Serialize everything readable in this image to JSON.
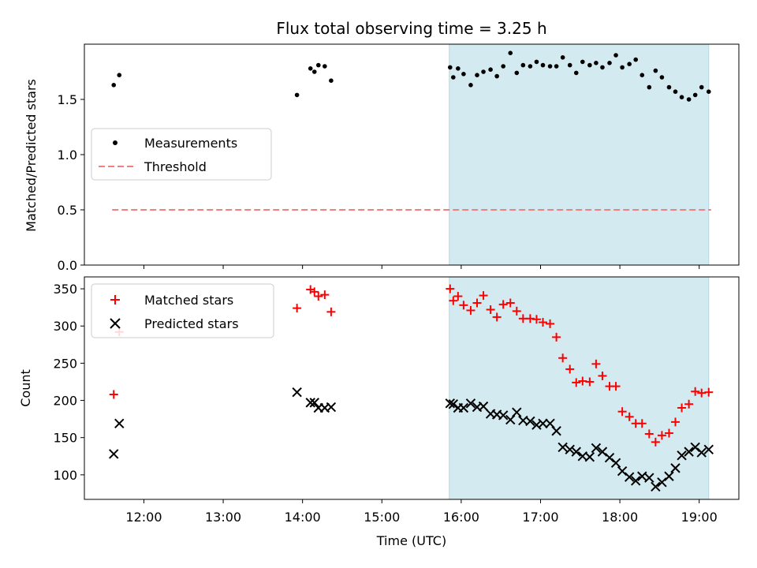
{
  "chart_data": [
    {
      "type": "scatter",
      "title": "Flux total observing time = 3.25 h",
      "xlabel": "",
      "ylabel": "Matched/Predicted stars",
      "ylim": [
        0,
        2.0
      ],
      "yticks": [
        0.0,
        0.5,
        1.0,
        1.5
      ],
      "ytick_labels": [
        "0.0",
        "0.5",
        "1.0",
        "1.5"
      ],
      "xlim_hours": [
        11.25,
        19.5
      ],
      "shaded_region_hours": [
        15.85,
        19.12
      ],
      "shade_color": "#d3eaf0",
      "grid": false,
      "legend_position": "center-left",
      "legend": [
        {
          "label": "Measurements",
          "marker": "dot",
          "color": "#000000"
        },
        {
          "label": "Threshold",
          "marker": "dashed-line",
          "color": "#f08080"
        }
      ],
      "threshold": {
        "y": 0.5,
        "x_range_hours": [
          11.6,
          19.15
        ],
        "color": "#f08080"
      },
      "series": [
        {
          "name": "Measurements",
          "color": "#000000",
          "points": [
            [
              11.62,
              1.63
            ],
            [
              11.69,
              1.72
            ],
            [
              13.93,
              1.54
            ],
            [
              14.1,
              1.78
            ],
            [
              14.15,
              1.75
            ],
            [
              14.2,
              1.81
            ],
            [
              14.28,
              1.8
            ],
            [
              14.36,
              1.67
            ],
            [
              15.86,
              1.79
            ],
            [
              15.9,
              1.7
            ],
            [
              15.96,
              1.78
            ],
            [
              16.03,
              1.73
            ],
            [
              16.12,
              1.63
            ],
            [
              16.2,
              1.72
            ],
            [
              16.28,
              1.75
            ],
            [
              16.37,
              1.77
            ],
            [
              16.45,
              1.71
            ],
            [
              16.53,
              1.8
            ],
            [
              16.62,
              1.92
            ],
            [
              16.7,
              1.74
            ],
            [
              16.78,
              1.81
            ],
            [
              16.87,
              1.8
            ],
            [
              16.95,
              1.84
            ],
            [
              17.03,
              1.81
            ],
            [
              17.12,
              1.8
            ],
            [
              17.2,
              1.8
            ],
            [
              17.28,
              1.88
            ],
            [
              17.37,
              1.81
            ],
            [
              17.45,
              1.74
            ],
            [
              17.53,
              1.84
            ],
            [
              17.62,
              1.81
            ],
            [
              17.7,
              1.83
            ],
            [
              17.78,
              1.79
            ],
            [
              17.87,
              1.83
            ],
            [
              17.95,
              1.9
            ],
            [
              18.03,
              1.79
            ],
            [
              18.12,
              1.82
            ],
            [
              18.2,
              1.86
            ],
            [
              18.28,
              1.72
            ],
            [
              18.37,
              1.61
            ],
            [
              18.45,
              1.76
            ],
            [
              18.53,
              1.7
            ],
            [
              18.62,
              1.61
            ],
            [
              18.7,
              1.57
            ],
            [
              18.78,
              1.52
            ],
            [
              18.87,
              1.5
            ],
            [
              18.95,
              1.54
            ],
            [
              19.03,
              1.61
            ],
            [
              19.12,
              1.57
            ]
          ]
        }
      ]
    },
    {
      "type": "scatter",
      "title": "",
      "xlabel": "Time (UTC)",
      "ylabel": "Count",
      "ylim": [
        67,
        366
      ],
      "yticks": [
        100,
        150,
        200,
        250,
        300,
        350
      ],
      "ytick_labels": [
        "100",
        "150",
        "200",
        "250",
        "300",
        "350"
      ],
      "xticks_hours": [
        12,
        13,
        14,
        15,
        16,
        17,
        18,
        19
      ],
      "xtick_labels": [
        "12:00",
        "13:00",
        "14:00",
        "15:00",
        "16:00",
        "17:00",
        "18:00",
        "19:00"
      ],
      "xlim_hours": [
        11.25,
        19.5
      ],
      "shaded_region_hours": [
        15.85,
        19.12
      ],
      "shade_color": "#d3eaf0",
      "grid": false,
      "legend_position": "top-left",
      "legend": [
        {
          "label": "Matched stars",
          "marker": "plus",
          "color": "#ff0000"
        },
        {
          "label": "Predicted stars",
          "marker": "x",
          "color": "#000000"
        }
      ],
      "series": [
        {
          "name": "Matched stars",
          "marker": "plus",
          "color": "#ff0000",
          "points": [
            [
              11.62,
              208
            ],
            [
              11.69,
              292
            ],
            [
              13.93,
              324
            ],
            [
              14.1,
              349
            ],
            [
              14.15,
              346
            ],
            [
              14.2,
              340
            ],
            [
              14.28,
              342
            ],
            [
              14.36,
              319
            ],
            [
              15.86,
              350
            ],
            [
              15.9,
              334
            ],
            [
              15.96,
              340
            ],
            [
              16.03,
              328
            ],
            [
              16.12,
              321
            ],
            [
              16.2,
              331
            ],
            [
              16.28,
              341
            ],
            [
              16.37,
              322
            ],
            [
              16.45,
              312
            ],
            [
              16.53,
              329
            ],
            [
              16.62,
              331
            ],
            [
              16.7,
              320
            ],
            [
              16.78,
              310
            ],
            [
              16.87,
              310
            ],
            [
              16.95,
              309
            ],
            [
              17.03,
              305
            ],
            [
              17.12,
              303
            ],
            [
              17.2,
              285
            ],
            [
              17.28,
              257
            ],
            [
              17.37,
              242
            ],
            [
              17.45,
              224
            ],
            [
              17.53,
              226
            ],
            [
              17.62,
              225
            ],
            [
              17.7,
              249
            ],
            [
              17.78,
              233
            ],
            [
              17.87,
              219
            ],
            [
              17.95,
              219
            ],
            [
              18.03,
              185
            ],
            [
              18.12,
              178
            ],
            [
              18.2,
              169
            ],
            [
              18.28,
              169
            ],
            [
              18.37,
              155
            ],
            [
              18.45,
              144
            ],
            [
              18.53,
              153
            ],
            [
              18.62,
              156
            ],
            [
              18.7,
              171
            ],
            [
              18.78,
              190
            ],
            [
              18.87,
              195
            ],
            [
              18.95,
              212
            ],
            [
              19.03,
              210
            ],
            [
              19.12,
              211
            ]
          ]
        },
        {
          "name": "Predicted stars",
          "marker": "x",
          "color": "#000000",
          "points": [
            [
              11.62,
              128
            ],
            [
              11.69,
              169
            ],
            [
              13.93,
              211
            ],
            [
              14.1,
              197
            ],
            [
              14.15,
              197
            ],
            [
              14.2,
              190
            ],
            [
              14.28,
              190
            ],
            [
              14.36,
              191
            ],
            [
              15.86,
              196
            ],
            [
              15.9,
              195
            ],
            [
              15.96,
              190
            ],
            [
              16.03,
              190
            ],
            [
              16.12,
              196
            ],
            [
              16.2,
              191
            ],
            [
              16.28,
              192
            ],
            [
              16.37,
              182
            ],
            [
              16.45,
              181
            ],
            [
              16.53,
              180
            ],
            [
              16.62,
              174
            ],
            [
              16.7,
              184
            ],
            [
              16.78,
              173
            ],
            [
              16.87,
              172
            ],
            [
              16.95,
              167
            ],
            [
              17.03,
              169
            ],
            [
              17.12,
              169
            ],
            [
              17.2,
              159
            ],
            [
              17.28,
              137
            ],
            [
              17.37,
              134
            ],
            [
              17.45,
              131
            ],
            [
              17.53,
              125
            ],
            [
              17.62,
              124
            ],
            [
              17.7,
              136
            ],
            [
              17.78,
              131
            ],
            [
              17.87,
              123
            ],
            [
              17.95,
              116
            ],
            [
              18.03,
              105
            ],
            [
              18.12,
              97
            ],
            [
              18.2,
              92
            ],
            [
              18.28,
              98
            ],
            [
              18.37,
              96
            ],
            [
              18.45,
              84
            ],
            [
              18.53,
              90
            ],
            [
              18.62,
              98
            ],
            [
              18.7,
              109
            ],
            [
              18.78,
              126
            ],
            [
              18.87,
              131
            ],
            [
              18.95,
              137
            ],
            [
              19.03,
              130
            ],
            [
              19.12,
              134
            ]
          ]
        }
      ]
    }
  ]
}
